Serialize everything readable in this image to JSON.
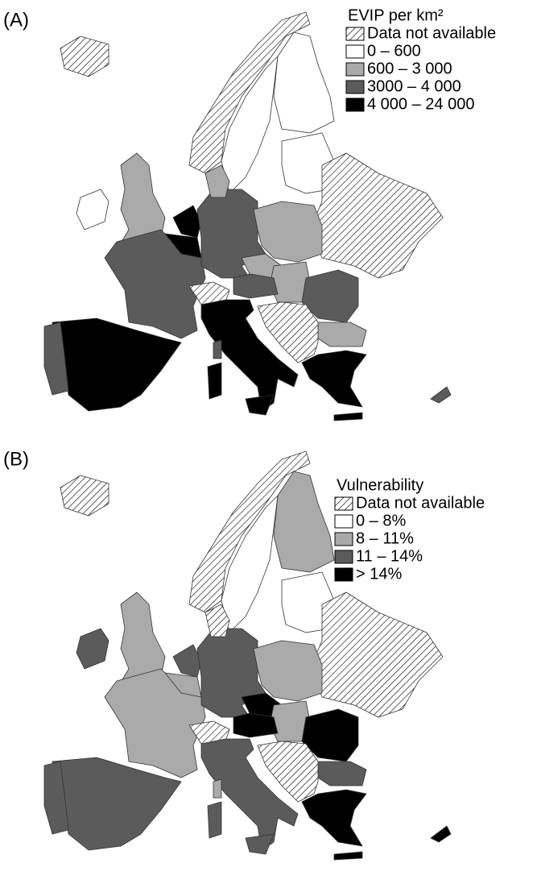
{
  "panels": [
    {
      "label": "(A)",
      "legend": {
        "title": "EVIP per km²",
        "items": [
          "Data not available",
          "0 – 600",
          "600 – 3 000",
          "3000 – 4 000",
          "4 000 – 24 000"
        ]
      }
    },
    {
      "label": "(B)",
      "legend": {
        "title": "Vulnerability",
        "items": [
          "Data not available",
          "0 – 8%",
          "8 – 11%",
          "11 – 14%",
          "> 14%"
        ]
      }
    }
  ]
}
